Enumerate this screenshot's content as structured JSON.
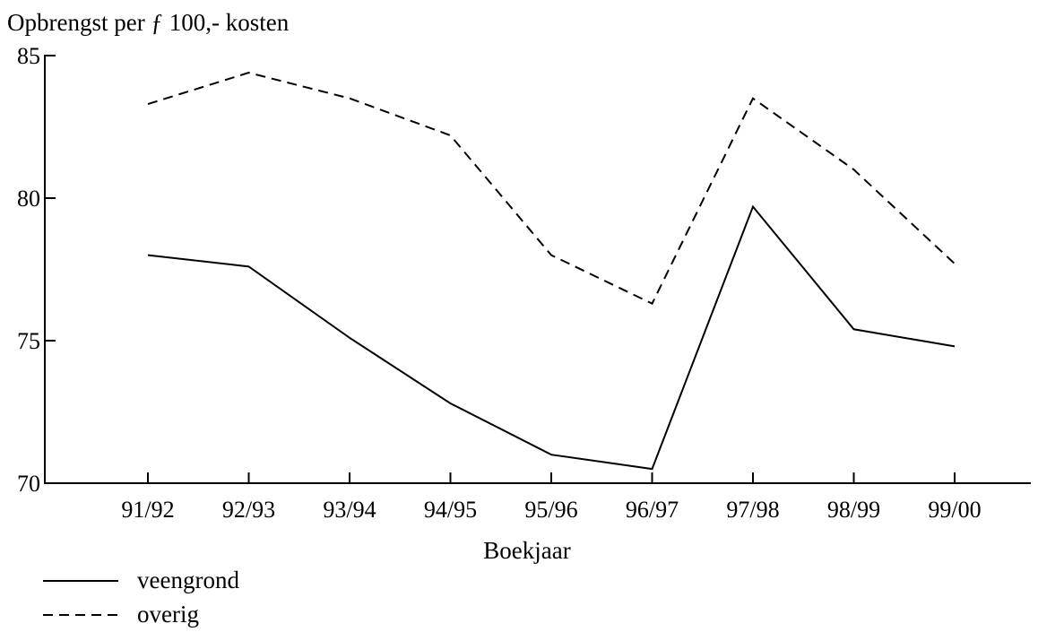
{
  "chart_data": {
    "type": "line",
    "ylabel": "Opbrengst per ƒ 100,- kosten",
    "xlabel": "Boekjaar",
    "categories": [
      "91/92",
      "92/93",
      "93/94",
      "94/95",
      "95/96",
      "96/97",
      "97/98",
      "98/99",
      "99/00"
    ],
    "ylim": [
      70,
      85
    ],
    "yticks": [
      70,
      75,
      80,
      85
    ],
    "grid": false,
    "legend_placement": "bottom-left",
    "series": [
      {
        "name": "veengrond",
        "line_style": "solid",
        "color": "#000000",
        "values": [
          78.0,
          77.6,
          75.1,
          72.8,
          71.0,
          70.5,
          79.7,
          75.4,
          74.8
        ]
      },
      {
        "name": "overig",
        "line_style": "dashed",
        "color": "#000000",
        "values": [
          83.3,
          84.4,
          83.5,
          82.2,
          78.0,
          76.3,
          83.5,
          81.0,
          77.7
        ]
      }
    ]
  }
}
